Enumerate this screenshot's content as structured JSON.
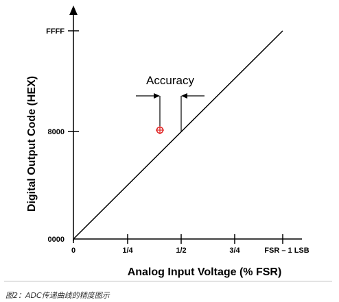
{
  "diagram": {
    "y_axis_label": "Digital Output Code (HEX)",
    "x_axis_label": "Analog Input Voltage (% FSR)",
    "y_ticks": [
      "0000",
      "8000",
      "FFFF"
    ],
    "x_ticks": [
      "0",
      "1/4",
      "1/2",
      "3/4",
      "FSR – 1 LSB"
    ],
    "annotation": "Accuracy",
    "marker_color": "#e02020",
    "marker_symbol": "crosshair-circle",
    "line_color": "#000000"
  },
  "caption": "图2：ADC传递曲线的精度图示"
}
